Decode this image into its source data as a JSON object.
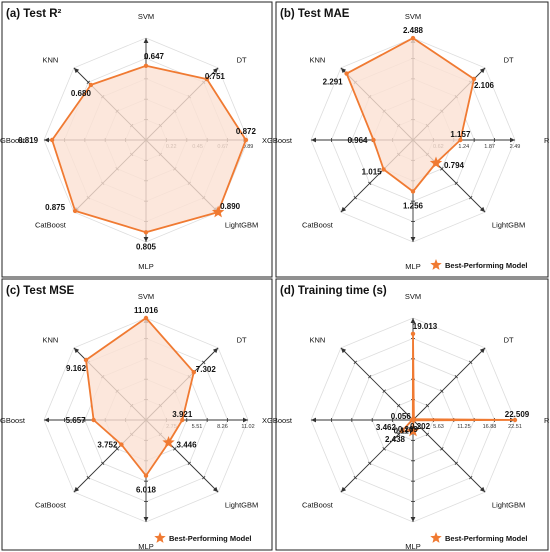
{
  "accent_color": "#F07A32",
  "fill_color": "#FBE1D3",
  "chart_data": [
    {
      "type": "radar",
      "title": "(a) Test R²",
      "axes": [
        "SVM",
        "DT",
        "RF",
        "LightGBM",
        "MLP",
        "CatBoost",
        "XGBoost",
        "KNN"
      ],
      "values": [
        0.647,
        0.751,
        0.872,
        0.89,
        0.805,
        0.875,
        0.819,
        0.68
      ],
      "value_labels": [
        "0.647",
        "0.751",
        "0.872",
        "0.890",
        "0.805",
        "0.875",
        "0.819",
        "0.680"
      ],
      "radial_range": [
        0,
        0.89
      ],
      "radial_ticks": [
        0.22,
        0.45,
        0.67,
        0.89
      ],
      "radial_tick_labels": [
        "0.22",
        "0.45",
        "0.67",
        "0.89"
      ],
      "best_model": "LightGBM",
      "legend": "",
      "fill": true,
      "grid": true
    },
    {
      "type": "radar",
      "title": "(b) Test MAE",
      "axes": [
        "SVM",
        "DT",
        "RF",
        "LightGBM",
        "MLP",
        "CatBoost",
        "XGBoost",
        "KNN"
      ],
      "values": [
        2.488,
        2.106,
        1.157,
        0.794,
        1.256,
        1.015,
        0.964,
        2.291
      ],
      "value_labels": [
        "2.488",
        "2.106",
        "1.157",
        "0.794",
        "1.256",
        "1.015",
        "0.964",
        "2.291"
      ],
      "radial_range": [
        0,
        2.49
      ],
      "radial_ticks": [
        0.62,
        1.24,
        1.87,
        2.49
      ],
      "radial_tick_labels": [
        "0.62",
        "1.24",
        "1.87",
        "2.49"
      ],
      "best_model": "LightGBM",
      "legend": "Best-Performing Model",
      "fill": true,
      "grid": true
    },
    {
      "type": "radar",
      "title": "(c) Test MSE",
      "axes": [
        "SVM",
        "DT",
        "RF",
        "LightGBM",
        "MLP",
        "CatBoost",
        "XGBoost",
        "KNN"
      ],
      "values": [
        11.016,
        7.302,
        3.921,
        3.446,
        6.018,
        3.752,
        5.657,
        9.162
      ],
      "value_labels": [
        "11.016",
        "7.302",
        "3.921",
        "3.446",
        "6.018",
        "3.752",
        "5.657",
        "9.162"
      ],
      "radial_range": [
        0,
        11.02
      ],
      "radial_ticks": [
        2.75,
        5.51,
        8.26,
        11.02
      ],
      "radial_tick_labels": [
        "2.75",
        "5.51",
        "8.26",
        "11.02"
      ],
      "best_model": "LightGBM",
      "legend": "Best-Performing Model",
      "fill": true,
      "grid": true
    },
    {
      "type": "radar",
      "title": "(d) Training time (s)",
      "axes": [
        "SVM",
        "DT",
        "RF",
        "LightGBM",
        "MLP",
        "CatBoost",
        "XGBoost",
        "KNN"
      ],
      "values": [
        19.013,
        0.269,
        22.509,
        0.117,
        2.438,
        3.462,
        0.202,
        0.056
      ],
      "value_labels": [
        "19.013",
        "0.269",
        "22.509",
        "0.117",
        "2.438",
        "3.462",
        "0.202",
        "0.056"
      ],
      "radial_range": [
        0,
        22.51
      ],
      "radial_ticks": [
        5.63,
        11.25,
        16.88,
        22.51
      ],
      "radial_tick_labels": [
        "5.63",
        "11.25",
        "16.88",
        "22.51"
      ],
      "best_model": "MLP",
      "legend": "Best-Performing Model",
      "fill": false,
      "grid": true
    }
  ]
}
